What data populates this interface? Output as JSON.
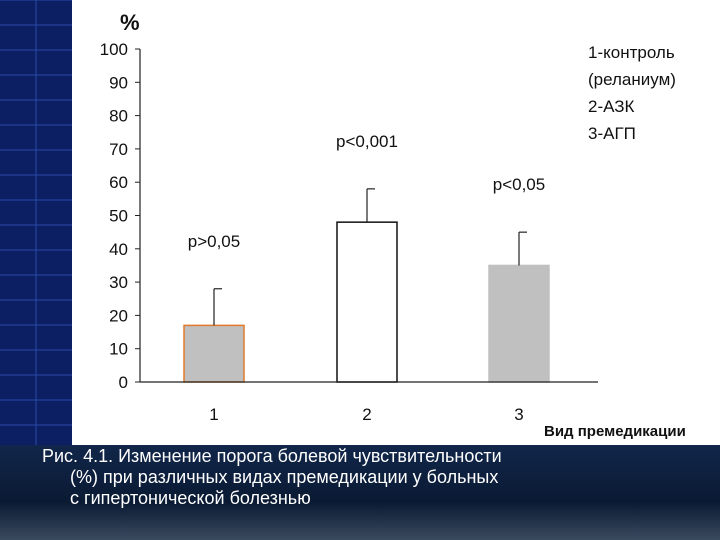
{
  "colors": {
    "sidebar": "#0d1f63",
    "sidebar_grid": "#2b4aa8",
    "panel": "#ffffff",
    "bar_gray": "#c0c0c0",
    "bar_outline_1": "#e07a2a",
    "bar_outline_2": "#111111",
    "caption_text": "#ffffff",
    "bottom_band": "#0a1a33"
  },
  "chart_data": {
    "type": "bar",
    "ylabel": "%",
    "xlabel": "Вид премедикации",
    "ylim": [
      0,
      100
    ],
    "yticks": [
      "0",
      "10",
      "20",
      "30",
      "40",
      "50",
      "60",
      "70",
      "80",
      "90",
      "100"
    ],
    "categories": [
      "1",
      "2",
      "3"
    ],
    "values": [
      17,
      48,
      35
    ],
    "error_upper": [
      28,
      58,
      45
    ],
    "annotations": [
      "p>0,05",
      "p<0,001",
      "p<0,05"
    ],
    "legend": [
      "1-контроль",
      "(реланиум)",
      "2-АЗК",
      "3-АГП"
    ],
    "grid": false
  },
  "caption": {
    "line1": "Рис. 4.1. Изменение порога болевой чувствительности",
    "line2": "(%)  при различных видах премедикации у больных",
    "line3": "с гипертонической болезнью"
  }
}
